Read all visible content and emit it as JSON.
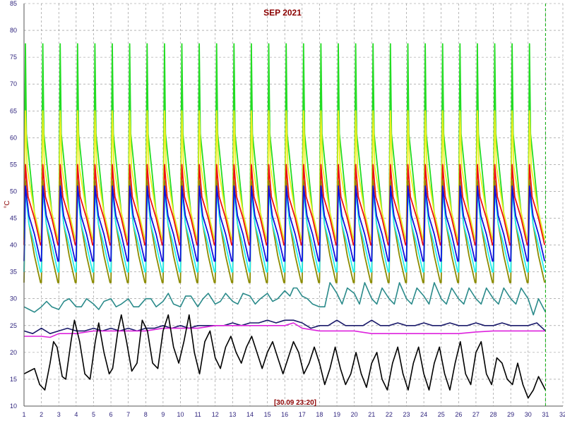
{
  "chart_data": {
    "type": "line",
    "title": "SEP 2021",
    "ylabel": "°C",
    "xlabel": "",
    "timestamp": "[30.09 23:20]",
    "xlim": [
      1,
      32
    ],
    "ylim": [
      10,
      85
    ],
    "x_ticks": [
      1,
      2,
      3,
      4,
      5,
      6,
      7,
      8,
      9,
      10,
      11,
      12,
      13,
      14,
      15,
      16,
      17,
      18,
      19,
      20,
      21,
      22,
      23,
      24,
      25,
      26,
      27,
      28,
      29,
      30,
      31,
      32
    ],
    "y_ticks": [
      10,
      15,
      20,
      25,
      30,
      35,
      40,
      45,
      50,
      55,
      60,
      65,
      70,
      75,
      80,
      85
    ],
    "grid": true,
    "cursor_x": 31,
    "colors": {
      "green": "#22dd22",
      "yellow": "#eeee22",
      "red": "#ee1111",
      "olive": "#8b8b00",
      "cyan": "#22eeee",
      "blue": "#1111dd",
      "teal": "#2a8a8a",
      "navy": "#1a1a6a",
      "magenta": "#dd22dd",
      "black": "#000000",
      "grid": "#8a8a8a",
      "axis": "#555555",
      "cursor": "#00aa00"
    },
    "series": [
      {
        "color_key": "green",
        "cycle": {
          "peak": 77.5,
          "base": 44,
          "start": 40,
          "end": 40,
          "width": 0.06
        }
      },
      {
        "color_key": "yellow",
        "cycle": {
          "peak": 65,
          "base": 44,
          "start": 40,
          "end": 40,
          "width": 0.1
        }
      },
      {
        "color_key": "red",
        "cycle": {
          "peak": 55,
          "base": 43,
          "start": 40,
          "end": 40,
          "width": 0.15
        }
      },
      {
        "color_key": "olive",
        "cycle": {
          "peak": 52,
          "base": 36,
          "start": 40,
          "end": 40,
          "width": 0.2
        }
      },
      {
        "color_key": "cyan",
        "cycle": {
          "peak": 50,
          "base": 38,
          "start": 40,
          "end": 40,
          "width": 0.2
        }
      },
      {
        "color_key": "blue",
        "cycle": {
          "peak": 51,
          "base": 40,
          "start": 40,
          "end": 40,
          "width": 0.2
        }
      },
      {
        "color_key": "teal",
        "values": [
          [
            1,
            28.5
          ],
          [
            1.3,
            28
          ],
          [
            1.6,
            27.5
          ],
          [
            2,
            28.5
          ],
          [
            2.3,
            29.5
          ],
          [
            2.6,
            28.5
          ],
          [
            3,
            28
          ],
          [
            3.3,
            29.5
          ],
          [
            3.6,
            30
          ],
          [
            4,
            28.5
          ],
          [
            4.3,
            28.5
          ],
          [
            4.6,
            30
          ],
          [
            5,
            29
          ],
          [
            5.3,
            28
          ],
          [
            5.6,
            29.5
          ],
          [
            6,
            30
          ],
          [
            6.3,
            28.5
          ],
          [
            6.6,
            29
          ],
          [
            7,
            30
          ],
          [
            7.3,
            28.5
          ],
          [
            7.6,
            28.5
          ],
          [
            8,
            30
          ],
          [
            8.3,
            30
          ],
          [
            8.6,
            28.5
          ],
          [
            9,
            29.5
          ],
          [
            9.3,
            31
          ],
          [
            9.6,
            29
          ],
          [
            10,
            28.5
          ],
          [
            10.3,
            30.5
          ],
          [
            10.6,
            30.5
          ],
          [
            11,
            28.5
          ],
          [
            11.3,
            30
          ],
          [
            11.6,
            31
          ],
          [
            12,
            29
          ],
          [
            12.3,
            29.5
          ],
          [
            12.6,
            31
          ],
          [
            13,
            29.5
          ],
          [
            13.3,
            29
          ],
          [
            13.6,
            31
          ],
          [
            14,
            30.5
          ],
          [
            14.3,
            29
          ],
          [
            14.6,
            30
          ],
          [
            15,
            31
          ],
          [
            15.3,
            29.5
          ],
          [
            15.6,
            30
          ],
          [
            16,
            31.5
          ],
          [
            16.3,
            30.5
          ],
          [
            16.5,
            32
          ],
          [
            16.7,
            32
          ],
          [
            17,
            30.5
          ],
          [
            17.3,
            30
          ],
          [
            17.6,
            29
          ],
          [
            18,
            28.5
          ],
          [
            18.3,
            28.5
          ],
          [
            18.6,
            33
          ],
          [
            19,
            31
          ],
          [
            19.3,
            29
          ],
          [
            19.6,
            32
          ],
          [
            20,
            31
          ],
          [
            20.3,
            29
          ],
          [
            20.6,
            33
          ],
          [
            21,
            30
          ],
          [
            21.3,
            29
          ],
          [
            21.6,
            32
          ],
          [
            22,
            30
          ],
          [
            22.3,
            29
          ],
          [
            22.6,
            33
          ],
          [
            23,
            30
          ],
          [
            23.3,
            29
          ],
          [
            23.6,
            32
          ],
          [
            24,
            30.5
          ],
          [
            24.3,
            29
          ],
          [
            24.6,
            33
          ],
          [
            25,
            30
          ],
          [
            25.3,
            29
          ],
          [
            25.6,
            32
          ],
          [
            26,
            30
          ],
          [
            26.3,
            29
          ],
          [
            26.6,
            32
          ],
          [
            27,
            30
          ],
          [
            27.3,
            29
          ],
          [
            27.6,
            32
          ],
          [
            28,
            30
          ],
          [
            28.3,
            29
          ],
          [
            28.6,
            32
          ],
          [
            29,
            30
          ],
          [
            29.3,
            29
          ],
          [
            29.6,
            32
          ],
          [
            30,
            30
          ],
          [
            30.3,
            27
          ],
          [
            30.6,
            30
          ],
          [
            31,
            27.5
          ]
        ]
      },
      {
        "color_key": "navy",
        "values": [
          [
            1,
            24
          ],
          [
            1.5,
            23.5
          ],
          [
            2,
            24.5
          ],
          [
            2.5,
            23.5
          ],
          [
            3,
            24
          ],
          [
            3.5,
            24.5
          ],
          [
            4,
            24
          ],
          [
            4.5,
            24
          ],
          [
            5,
            24.5
          ],
          [
            5.5,
            24
          ],
          [
            6,
            24.5
          ],
          [
            6.5,
            24
          ],
          [
            7,
            24.5
          ],
          [
            7.5,
            24
          ],
          [
            8,
            24.5
          ],
          [
            8.5,
            24.5
          ],
          [
            9,
            25
          ],
          [
            9.5,
            24.5
          ],
          [
            10,
            25
          ],
          [
            10.5,
            24.5
          ],
          [
            11,
            25
          ],
          [
            11.5,
            25
          ],
          [
            12,
            25
          ],
          [
            12.5,
            25
          ],
          [
            13,
            25.5
          ],
          [
            13.5,
            25
          ],
          [
            14,
            25.5
          ],
          [
            14.5,
            25.5
          ],
          [
            15,
            26
          ],
          [
            15.5,
            25.5
          ],
          [
            16,
            26
          ],
          [
            16.5,
            26
          ],
          [
            17,
            25.5
          ],
          [
            17.5,
            24.5
          ],
          [
            18,
            25
          ],
          [
            18.5,
            25
          ],
          [
            19,
            26
          ],
          [
            19.5,
            25
          ],
          [
            20,
            25
          ],
          [
            20.5,
            25
          ],
          [
            21,
            26
          ],
          [
            21.5,
            25
          ],
          [
            22,
            25
          ],
          [
            22.5,
            25.5
          ],
          [
            23,
            25
          ],
          [
            23.5,
            25
          ],
          [
            24,
            25.5
          ],
          [
            24.5,
            25
          ],
          [
            25,
            25
          ],
          [
            25.5,
            25.5
          ],
          [
            26,
            25
          ],
          [
            26.5,
            25
          ],
          [
            27,
            25.5
          ],
          [
            27.5,
            25
          ],
          [
            28,
            25
          ],
          [
            28.5,
            25.5
          ],
          [
            29,
            25
          ],
          [
            29.5,
            25
          ],
          [
            30,
            25
          ],
          [
            30.5,
            25.5
          ],
          [
            31,
            24
          ]
        ]
      },
      {
        "color_key": "magenta",
        "values": [
          [
            1,
            23
          ],
          [
            2,
            23
          ],
          [
            2.5,
            22.8
          ],
          [
            3,
            23.5
          ],
          [
            4,
            23.5
          ],
          [
            5,
            24
          ],
          [
            6,
            24
          ],
          [
            7,
            24
          ],
          [
            8,
            24
          ],
          [
            9,
            24.5
          ],
          [
            10,
            24.5
          ],
          [
            11,
            24.5
          ],
          [
            12,
            25
          ],
          [
            13,
            25
          ],
          [
            14,
            25
          ],
          [
            15,
            25
          ],
          [
            16,
            25
          ],
          [
            16.5,
            25.5
          ],
          [
            17,
            24.5
          ],
          [
            18,
            24
          ],
          [
            19,
            24
          ],
          [
            20,
            24
          ],
          [
            21,
            23.5
          ],
          [
            22,
            23.5
          ],
          [
            23,
            23.5
          ],
          [
            24,
            23.5
          ],
          [
            25,
            23.5
          ],
          [
            26,
            23.5
          ],
          [
            27,
            23.8
          ],
          [
            28,
            24
          ],
          [
            29,
            24
          ],
          [
            30,
            24
          ],
          [
            31,
            24
          ]
        ]
      },
      {
        "color_key": "black",
        "values": [
          [
            1,
            16
          ],
          [
            1.3,
            16.5
          ],
          [
            1.6,
            17
          ],
          [
            1.9,
            14
          ],
          [
            2.2,
            13
          ],
          [
            2.5,
            18
          ],
          [
            2.7,
            22
          ],
          [
            2.9,
            21
          ],
          [
            3.2,
            15.5
          ],
          [
            3.4,
            15
          ],
          [
            3.7,
            22
          ],
          [
            3.9,
            26
          ],
          [
            4.2,
            22
          ],
          [
            4.5,
            16
          ],
          [
            4.8,
            15
          ],
          [
            5.1,
            22
          ],
          [
            5.3,
            25.5
          ],
          [
            5.6,
            20
          ],
          [
            5.9,
            16
          ],
          [
            6.1,
            17
          ],
          [
            6.4,
            24
          ],
          [
            6.6,
            27
          ],
          [
            6.9,
            22
          ],
          [
            7.2,
            16.5
          ],
          [
            7.5,
            18
          ],
          [
            7.8,
            26
          ],
          [
            8.1,
            24
          ],
          [
            8.4,
            18
          ],
          [
            8.7,
            17
          ],
          [
            9,
            24
          ],
          [
            9.3,
            27
          ],
          [
            9.6,
            21
          ],
          [
            9.9,
            18
          ],
          [
            10.2,
            22
          ],
          [
            10.5,
            27
          ],
          [
            10.8,
            20
          ],
          [
            11.1,
            16
          ],
          [
            11.4,
            22
          ],
          [
            11.7,
            24
          ],
          [
            12,
            19
          ],
          [
            12.3,
            17
          ],
          [
            12.6,
            21
          ],
          [
            12.9,
            23
          ],
          [
            13.2,
            20
          ],
          [
            13.5,
            18
          ],
          [
            13.8,
            21
          ],
          [
            14.1,
            23
          ],
          [
            14.4,
            20
          ],
          [
            14.7,
            17
          ],
          [
            15,
            20
          ],
          [
            15.3,
            22
          ],
          [
            15.6,
            19
          ],
          [
            15.9,
            16
          ],
          [
            16.2,
            19
          ],
          [
            16.5,
            22
          ],
          [
            16.8,
            20
          ],
          [
            17.1,
            16
          ],
          [
            17.4,
            18
          ],
          [
            17.7,
            21
          ],
          [
            18,
            18
          ],
          [
            18.3,
            14
          ],
          [
            18.6,
            17
          ],
          [
            18.9,
            21
          ],
          [
            19.2,
            17
          ],
          [
            19.5,
            14
          ],
          [
            19.8,
            16
          ],
          [
            20.1,
            20
          ],
          [
            20.4,
            16
          ],
          [
            20.7,
            13.5
          ],
          [
            21,
            18
          ],
          [
            21.3,
            20
          ],
          [
            21.6,
            15
          ],
          [
            21.9,
            13
          ],
          [
            22.2,
            18
          ],
          [
            22.5,
            21
          ],
          [
            22.8,
            16
          ],
          [
            23.1,
            13
          ],
          [
            23.4,
            18
          ],
          [
            23.7,
            21
          ],
          [
            24,
            16
          ],
          [
            24.3,
            13
          ],
          [
            24.6,
            18
          ],
          [
            24.9,
            21
          ],
          [
            25.2,
            16
          ],
          [
            25.5,
            13
          ],
          [
            25.8,
            18
          ],
          [
            26.1,
            22
          ],
          [
            26.4,
            16
          ],
          [
            26.7,
            14
          ],
          [
            27,
            20
          ],
          [
            27.3,
            22
          ],
          [
            27.6,
            16
          ],
          [
            27.9,
            14
          ],
          [
            28.2,
            19
          ],
          [
            28.5,
            18
          ],
          [
            28.8,
            15
          ],
          [
            29.1,
            14
          ],
          [
            29.4,
            18
          ],
          [
            29.7,
            14
          ],
          [
            30,
            11.5
          ],
          [
            30.3,
            13
          ],
          [
            30.6,
            15.5
          ],
          [
            31,
            13
          ]
        ]
      }
    ]
  }
}
